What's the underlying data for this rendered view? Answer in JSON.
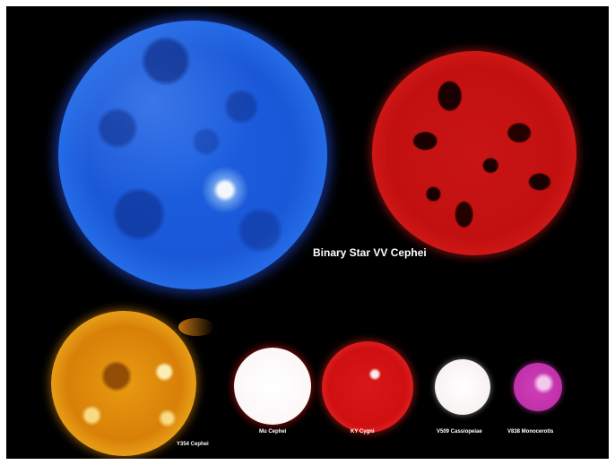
{
  "title": "Binary Star VV Cephei",
  "stars": [
    {
      "label": "Y354 Cephei",
      "color": "#e89a10"
    },
    {
      "label": "Mu Cephei",
      "color": "#ffffff"
    },
    {
      "label": "KY Cygni",
      "color": "#d81818"
    },
    {
      "label": "V509 Cassiopeiae",
      "color": "#ffffff"
    },
    {
      "label": "V838 Monocerotis",
      "color": "#c030aa"
    }
  ],
  "binary_colors": {
    "primary": "#1c5fe0",
    "secondary": "#c81414"
  }
}
